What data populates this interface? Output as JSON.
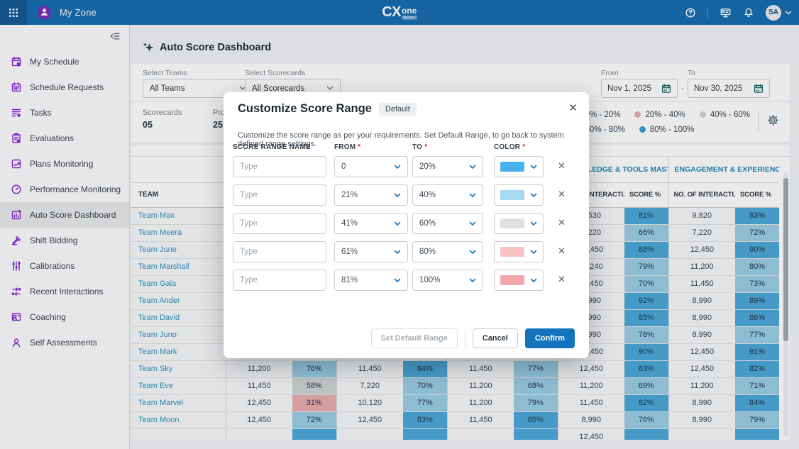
{
  "header": {
    "app": "My Zone",
    "logo": {
      "cx": "CX",
      "one": "one",
      "tag": "Mpower"
    },
    "avatar": "SA"
  },
  "sidebar": {
    "items": [
      {
        "icon": "schedule",
        "label": "My Schedule"
      },
      {
        "icon": "schedule-requests",
        "label": "Schedule Requests"
      },
      {
        "icon": "tasks",
        "label": "Tasks"
      },
      {
        "icon": "evaluations",
        "label": "Evaluations"
      },
      {
        "icon": "plans-monitoring",
        "label": "Plans Monitoring"
      },
      {
        "icon": "performance-monitoring",
        "label": "Performance Monitoring"
      },
      {
        "icon": "auto-score-dashboard",
        "label": "Auto Score Dashboard",
        "active": true
      },
      {
        "icon": "shift-bidding",
        "label": "Shift Bidding"
      },
      {
        "icon": "calibrations",
        "label": "Calibrations"
      },
      {
        "icon": "recent-interactions",
        "label": "Recent Interactions"
      },
      {
        "icon": "coaching",
        "label": "Coaching"
      },
      {
        "icon": "self-assessments",
        "label": "Self Assessments"
      }
    ]
  },
  "page": {
    "title": "Auto Score Dashboard",
    "filters": {
      "teams_label": "Select Teams",
      "teams_value": "All Teams",
      "scorecards_label": "Select Scorecards",
      "scorecards_value": "All Scorecards",
      "from_label": "From",
      "from_value": "Nov 1, 2025",
      "separator": "-",
      "to_label": "To",
      "to_value": "Nov 30, 2025"
    },
    "stats": [
      {
        "label": "Scorecards",
        "value": "05"
      },
      {
        "label": "Pro",
        "value": "25"
      }
    ],
    "legend": {
      "items": [
        {
          "label": "0% - 20%",
          "color": "#E06A6A"
        },
        {
          "label": "20% - 40%",
          "color": "#E9ACAE"
        },
        {
          "label": "40% - 60%",
          "color": "#D0D3D4"
        },
        {
          "label": "60% - 80%",
          "color": "#9ACDE5"
        },
        {
          "label": "80% - 100%",
          "color": "#2F9FD8"
        }
      ]
    }
  },
  "score_colors": {
    "hi": "#4AA8D8",
    "mid": "#9ACDE5",
    "gray": "#D0D3D4",
    "pink": "#E9ACAE",
    "red": "#E06A6A"
  },
  "table": {
    "team_col": "TEAM",
    "interactions_col": "NO. OF INTERACTI...",
    "score_col": "SCORE %",
    "groups": [
      "",
      "",
      "",
      "KNOWLEDGE & TOOLS MASTERY...",
      "ENGAGEMENT & EXPERIENCE"
    ],
    "rows": [
      {
        "team": "Team Max",
        "cells": [
          "",
          "",
          "",
          "",
          "",
          "",
          "9,530",
          "81%",
          "9,820",
          "83%"
        ]
      },
      {
        "team": "Team Meera",
        "cells": [
          "",
          "",
          "",
          "",
          "",
          "",
          "7,220",
          "66%",
          "7,220",
          "72%"
        ]
      },
      {
        "team": "Team June",
        "cells": [
          "",
          "",
          "",
          "",
          "",
          "",
          "12,450",
          "88%",
          "12,450",
          "90%"
        ]
      },
      {
        "team": "Team Marshall",
        "cells": [
          "",
          "",
          "",
          "",
          "",
          "",
          "11,240",
          "79%",
          "11,200",
          "80%"
        ]
      },
      {
        "team": "Team Gaia",
        "cells": [
          "",
          "",
          "",
          "",
          "",
          "",
          "11,450",
          "70%",
          "11,450",
          "73%"
        ]
      },
      {
        "team": "Team Ander",
        "cells": [
          "",
          "",
          "",
          "",
          "",
          "",
          "8,990",
          "92%",
          "8,990",
          "89%"
        ]
      },
      {
        "team": "Team David",
        "cells": [
          "",
          "",
          "",
          "",
          "",
          "",
          "8,990",
          "85%",
          "8,990",
          "86%"
        ]
      },
      {
        "team": "Team Juno",
        "cells": [
          "",
          "",
          "",
          "",
          "",
          "",
          "8,990",
          "78%",
          "8,990",
          "77%"
        ]
      },
      {
        "team": "Team Mark",
        "cells": [
          "",
          "",
          "",
          "",
          "",
          "",
          "12,450",
          "90%",
          "12,450",
          "91%"
        ]
      },
      {
        "team": "Team Sky",
        "cells": [
          "11,200",
          "76%",
          "11,450",
          "84%",
          "11,450",
          "77%",
          "12,450",
          "83%",
          "12,450",
          "82%"
        ]
      },
      {
        "team": "Team Eve",
        "cells": [
          "11,450",
          "58%",
          "7,220",
          "70%",
          "11,200",
          "68%",
          "11,200",
          "69%",
          "11,200",
          "71%"
        ]
      },
      {
        "team": "Team Marvel",
        "cells": [
          "12,450",
          "31%",
          "10,120",
          "77%",
          "11,200",
          "79%",
          "11,450",
          "82%",
          "8,990",
          "84%"
        ]
      },
      {
        "team": "Team Moon",
        "cells": [
          "12,450",
          "72%",
          "12,450",
          "83%",
          "11,450",
          "85%",
          "8,990",
          "76%",
          "8,990",
          "79%"
        ]
      },
      {
        "team": "",
        "partial": true,
        "cells": [
          "",
          "",
          "",
          "",
          "",
          "",
          "12,450",
          "",
          "",
          ""
        ],
        "tones": [
          "hi",
          "hi",
          "hi",
          "hi",
          "hi"
        ]
      }
    ]
  },
  "modal": {
    "title": "Customize Score Range",
    "badge": "Default",
    "close": "✕",
    "description": "Customize the score range as per your requirements. Set Default Range, to go back to system defined range settings.",
    "required_mark": "*",
    "columns": {
      "name": "SCORE RANGE NAME",
      "from": "FROM",
      "to": "TO",
      "color": "COLOR"
    },
    "name_placeholder": "Type",
    "remove": "✕",
    "rows": [
      {
        "from": "0",
        "to": "20%",
        "color": "#45B1E8"
      },
      {
        "from": "21%",
        "to": "40%",
        "color": "#A6D9F2"
      },
      {
        "from": "41%",
        "to": "60%",
        "color": "#E0E0E0"
      },
      {
        "from": "61%",
        "to": "80%",
        "color": "#F9C3C6"
      },
      {
        "from": "81%",
        "to": "100%",
        "color": "#F5A6A9"
      }
    ],
    "buttons": {
      "set_default": "Set Default Range",
      "cancel": "Cancel",
      "confirm": "Confirm"
    }
  }
}
